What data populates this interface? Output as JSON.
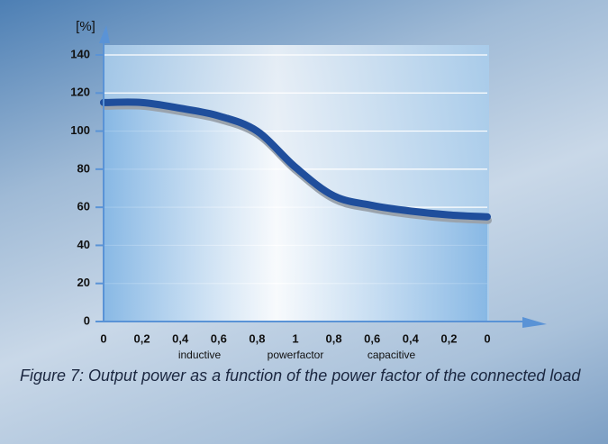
{
  "chart_data": {
    "type": "line",
    "y_label": "[%]",
    "categories": [
      "0",
      "0,2",
      "0,4",
      "0,6",
      "0,8",
      "1",
      "0,8",
      "0,6",
      "0,4",
      "0,2",
      "0"
    ],
    "x_group_labels": [
      "inductive",
      "powerfactor",
      "capacitive"
    ],
    "values": [
      115,
      115,
      112,
      108,
      100,
      81,
      66,
      61,
      58,
      56,
      55
    ],
    "color": "#1f4e9c",
    "ylim": [
      0,
      140
    ],
    "yticks": [
      0,
      20,
      40,
      60,
      80,
      100,
      120,
      140
    ],
    "grid": true,
    "caption": "Figure 7: Output power as a function of the power factor of the connected load"
  }
}
